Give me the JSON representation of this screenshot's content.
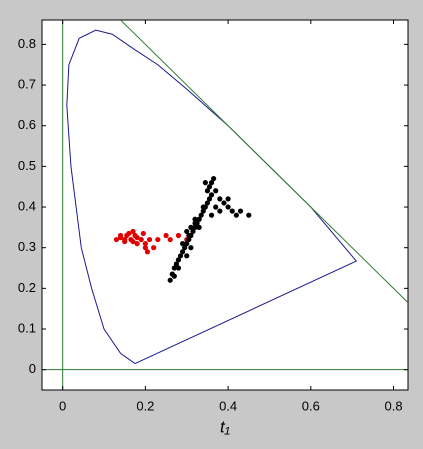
{
  "chart_data": {
    "type": "scatter",
    "xlabel": "t₁",
    "xlim": [
      -0.05,
      0.835
    ],
    "ylim": [
      -0.05,
      0.86
    ],
    "xticks": [
      0,
      0.2,
      0.4,
      0.6,
      0.8
    ],
    "yticks": [
      0,
      0.1,
      0.2,
      0.3,
      0.4,
      0.5,
      0.6,
      0.7,
      0.8
    ],
    "grid": false,
    "series": [
      {
        "type": "line",
        "color": "#1a1a8c",
        "x": [
          0.175,
          0.14,
          0.1,
          0.07,
          0.045,
          0.02,
          0.01,
          0.015,
          0.04,
          0.08,
          0.12,
          0.17,
          0.23,
          0.3,
          0.4,
          0.5,
          0.6,
          0.71,
          0.175
        ],
        "values": [
          0.015,
          0.04,
          0.1,
          0.2,
          0.3,
          0.5,
          0.65,
          0.75,
          0.815,
          0.835,
          0.825,
          0.79,
          0.75,
          0.69,
          0.6,
          0.5,
          0.4,
          0.267,
          0.015
        ]
      },
      {
        "type": "line",
        "color": "#2e7d32",
        "x": [
          0,
          0
        ],
        "values": [
          -0.05,
          0.86
        ]
      },
      {
        "type": "line",
        "color": "#2e7d32",
        "x": [
          -0.05,
          0.835
        ],
        "values": [
          0,
          0
        ]
      },
      {
        "type": "line",
        "color": "#2e7d32",
        "x": [
          0.14,
          0.835
        ],
        "values": [
          0.86,
          0.165
        ]
      },
      {
        "type": "scatter",
        "color": "#e00000",
        "x": [
          0.13,
          0.14,
          0.15,
          0.155,
          0.16,
          0.165,
          0.17,
          0.175,
          0.18,
          0.18,
          0.19,
          0.195,
          0.2,
          0.205,
          0.21,
          0.22,
          0.23,
          0.25,
          0.26,
          0.28,
          0.3,
          0.15,
          0.14,
          0.17,
          0.2
        ],
        "values": [
          0.32,
          0.325,
          0.32,
          0.33,
          0.335,
          0.32,
          0.34,
          0.33,
          0.325,
          0.31,
          0.32,
          0.335,
          0.31,
          0.29,
          0.32,
          0.3,
          0.32,
          0.33,
          0.32,
          0.33,
          0.32,
          0.315,
          0.33,
          0.315,
          0.3
        ]
      },
      {
        "type": "scatter",
        "color": "#000000",
        "x": [
          0.26,
          0.265,
          0.27,
          0.275,
          0.28,
          0.285,
          0.29,
          0.295,
          0.3,
          0.305,
          0.31,
          0.315,
          0.32,
          0.325,
          0.33,
          0.335,
          0.34,
          0.345,
          0.35,
          0.355,
          0.36,
          0.35,
          0.355,
          0.36,
          0.365,
          0.345,
          0.37,
          0.38,
          0.39,
          0.4,
          0.41,
          0.42,
          0.43,
          0.45,
          0.37,
          0.36,
          0.33,
          0.32,
          0.3,
          0.29,
          0.31,
          0.27,
          0.28,
          0.3,
          0.32,
          0.4,
          0.38,
          0.34,
          0.305,
          0.31
        ],
        "values": [
          0.22,
          0.235,
          0.25,
          0.26,
          0.27,
          0.28,
          0.29,
          0.3,
          0.31,
          0.32,
          0.33,
          0.34,
          0.35,
          0.36,
          0.37,
          0.38,
          0.39,
          0.4,
          0.41,
          0.42,
          0.43,
          0.44,
          0.45,
          0.46,
          0.47,
          0.46,
          0.44,
          0.42,
          0.41,
          0.4,
          0.39,
          0.38,
          0.39,
          0.38,
          0.4,
          0.38,
          0.35,
          0.36,
          0.34,
          0.31,
          0.3,
          0.23,
          0.25,
          0.28,
          0.37,
          0.42,
          0.39,
          0.4,
          0.33,
          0.35
        ]
      }
    ]
  }
}
